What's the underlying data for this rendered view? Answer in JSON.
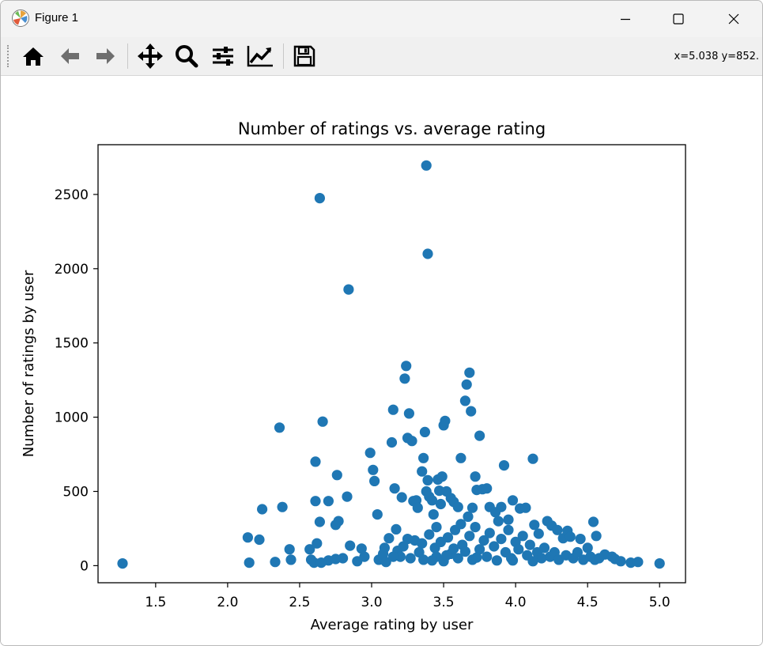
{
  "window": {
    "title": "Figure 1",
    "icons": [
      "matplotlib-icon",
      "minimize-icon",
      "maximize-icon",
      "close-icon"
    ]
  },
  "toolbar": {
    "buttons": [
      "home-icon",
      "back-arrow-icon",
      "forward-arrow-icon",
      "pan-icon",
      "zoom-icon",
      "subplots-icon",
      "edit-axes-icon",
      "save-icon"
    ],
    "coords": "x=5.038 y=852."
  },
  "colors": {
    "marker": "#1f77b4",
    "axes": "#000000"
  },
  "chart_data": {
    "type": "scatter",
    "title": "Number of ratings vs. average rating",
    "xlabel": "Average rating by user",
    "ylabel": "Number of ratings by user",
    "xlim": [
      1.1,
      5.18
    ],
    "ylim": [
      -115,
      2835
    ],
    "xticks": [
      1.5,
      2.0,
      2.5,
      3.0,
      3.5,
      4.0,
      4.5,
      5.0
    ],
    "xtick_labels": [
      "1.5",
      "2.0",
      "2.5",
      "3.0",
      "3.5",
      "4.0",
      "4.5",
      "5.0"
    ],
    "yticks": [
      0,
      500,
      1000,
      1500,
      2000,
      2500
    ],
    "ytick_labels": [
      "0",
      "500",
      "1000",
      "1500",
      "2000",
      "2500"
    ],
    "grid": false,
    "legend": "none",
    "points": [
      [
        1.27,
        15
      ],
      [
        2.14,
        190
      ],
      [
        2.15,
        20
      ],
      [
        2.22,
        175
      ],
      [
        2.24,
        380
      ],
      [
        2.33,
        25
      ],
      [
        2.36,
        930
      ],
      [
        2.38,
        395
      ],
      [
        2.43,
        110
      ],
      [
        2.44,
        40
      ],
      [
        2.57,
        110
      ],
      [
        2.58,
        40
      ],
      [
        2.6,
        20
      ],
      [
        2.61,
        700
      ],
      [
        2.61,
        435
      ],
      [
        2.62,
        150
      ],
      [
        2.64,
        2475
      ],
      [
        2.64,
        295
      ],
      [
        2.66,
        970
      ],
      [
        2.7,
        435
      ],
      [
        2.75,
        275
      ],
      [
        2.76,
        610
      ],
      [
        2.77,
        300
      ],
      [
        2.83,
        465
      ],
      [
        2.84,
        1860
      ],
      [
        2.85,
        135
      ],
      [
        2.93,
        115
      ],
      [
        2.99,
        760
      ],
      [
        3.01,
        645
      ],
      [
        3.02,
        570
      ],
      [
        3.04,
        345
      ],
      [
        3.09,
        120
      ],
      [
        3.12,
        185
      ],
      [
        3.14,
        830
      ],
      [
        3.15,
        1050
      ],
      [
        3.16,
        520
      ],
      [
        3.17,
        245
      ],
      [
        3.21,
        460
      ],
      [
        3.23,
        1260
      ],
      [
        3.24,
        1345
      ],
      [
        3.25,
        860
      ],
      [
        3.26,
        1025
      ],
      [
        3.28,
        840
      ],
      [
        3.29,
        435
      ],
      [
        3.31,
        440
      ],
      [
        3.32,
        390
      ],
      [
        3.35,
        635
      ],
      [
        3.36,
        725
      ],
      [
        3.37,
        900
      ],
      [
        3.38,
        2695
      ],
      [
        3.38,
        500
      ],
      [
        3.39,
        2100
      ],
      [
        3.39,
        575
      ],
      [
        3.4,
        465
      ],
      [
        3.42,
        440
      ],
      [
        3.43,
        345
      ],
      [
        3.46,
        580
      ],
      [
        3.47,
        505
      ],
      [
        3.48,
        415
      ],
      [
        3.49,
        600
      ],
      [
        3.5,
        945
      ],
      [
        3.51,
        975
      ],
      [
        3.52,
        500
      ],
      [
        3.55,
        455
      ],
      [
        3.57,
        430
      ],
      [
        3.6,
        395
      ],
      [
        3.62,
        725
      ],
      [
        3.65,
        1110
      ],
      [
        3.66,
        1220
      ],
      [
        3.67,
        330
      ],
      [
        3.68,
        1300
      ],
      [
        3.69,
        1040
      ],
      [
        3.7,
        390
      ],
      [
        3.72,
        600
      ],
      [
        3.73,
        510
      ],
      [
        3.75,
        875
      ],
      [
        3.77,
        515
      ],
      [
        3.8,
        520
      ],
      [
        3.82,
        395
      ],
      [
        3.86,
        360
      ],
      [
        3.9,
        395
      ],
      [
        3.92,
        675
      ],
      [
        3.95,
        310
      ],
      [
        3.98,
        440
      ],
      [
        4.03,
        385
      ],
      [
        4.07,
        390
      ],
      [
        4.12,
        720
      ],
      [
        4.13,
        275
      ],
      [
        4.16,
        215
      ],
      [
        4.22,
        300
      ],
      [
        4.25,
        270
      ],
      [
        4.29,
        240
      ],
      [
        4.33,
        185
      ],
      [
        4.36,
        235
      ],
      [
        4.38,
        195
      ],
      [
        4.45,
        180
      ],
      [
        4.5,
        120
      ],
      [
        4.54,
        295
      ],
      [
        4.56,
        200
      ],
      [
        4.62,
        75
      ],
      [
        4.67,
        60
      ],
      [
        4.69,
        45
      ],
      [
        4.73,
        30
      ],
      [
        4.8,
        20
      ],
      [
        4.85,
        25
      ],
      [
        5.0,
        15
      ],
      [
        2.7,
        35
      ],
      [
        2.8,
        50
      ],
      [
        2.9,
        30
      ],
      [
        2.95,
        60
      ],
      [
        3.05,
        40
      ],
      [
        3.08,
        80
      ],
      [
        3.1,
        25
      ],
      [
        3.18,
        100
      ],
      [
        3.2,
        60
      ],
      [
        3.22,
        130
      ],
      [
        3.27,
        50
      ],
      [
        3.3,
        170
      ],
      [
        3.33,
        90
      ],
      [
        3.36,
        40
      ],
      [
        3.4,
        210
      ],
      [
        3.44,
        120
      ],
      [
        3.45,
        60
      ],
      [
        3.48,
        160
      ],
      [
        3.5,
        30
      ],
      [
        3.53,
        190
      ],
      [
        3.55,
        80
      ],
      [
        3.58,
        240
      ],
      [
        3.6,
        50
      ],
      [
        3.63,
        140
      ],
      [
        3.65,
        95
      ],
      [
        3.68,
        200
      ],
      [
        3.7,
        40
      ],
      [
        3.72,
        260
      ],
      [
        3.75,
        110
      ],
      [
        3.78,
        170
      ],
      [
        3.8,
        60
      ],
      [
        3.82,
        220
      ],
      [
        3.85,
        130
      ],
      [
        3.87,
        35
      ],
      [
        3.9,
        180
      ],
      [
        3.93,
        90
      ],
      [
        3.95,
        240
      ],
      [
        3.97,
        50
      ],
      [
        4.0,
        160
      ],
      [
        4.02,
        110
      ],
      [
        4.05,
        200
      ],
      [
        4.08,
        70
      ],
      [
        4.1,
        140
      ],
      [
        4.15,
        90
      ],
      [
        4.18,
        50
      ],
      [
        4.2,
        120
      ],
      [
        4.24,
        60
      ],
      [
        4.27,
        90
      ],
      [
        4.3,
        40
      ],
      [
        4.35,
        70
      ],
      [
        4.4,
        50
      ],
      [
        4.43,
        90
      ],
      [
        4.47,
        40
      ],
      [
        4.52,
        60
      ],
      [
        4.55,
        40
      ],
      [
        4.58,
        50
      ],
      [
        3.35,
        150
      ],
      [
        3.45,
        260
      ],
      [
        3.62,
        280
      ],
      [
        3.88,
        300
      ],
      [
        3.15,
        60
      ],
      [
        3.25,
        180
      ],
      [
        3.57,
        115
      ],
      [
        3.73,
        55
      ],
      [
        3.98,
        35
      ],
      [
        4.12,
        30
      ],
      [
        3.42,
        35
      ],
      [
        3.52,
        70
      ],
      [
        2.65,
        20
      ],
      [
        2.75,
        45
      ]
    ]
  }
}
